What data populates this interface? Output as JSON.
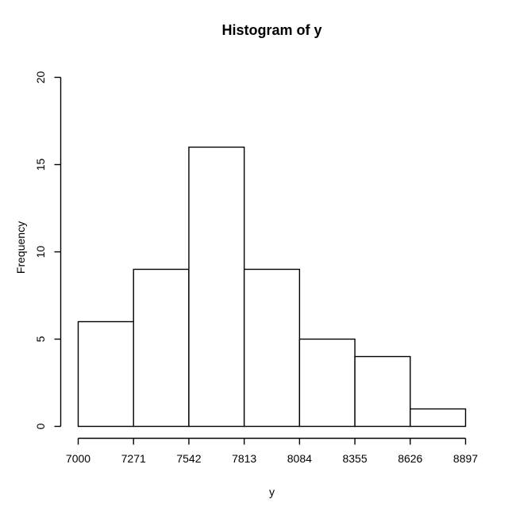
{
  "chart_data": {
    "type": "bar",
    "subtype": "histogram",
    "title": "Histogram of y",
    "xlabel": "y",
    "ylabel": "Frequency",
    "breaks": [
      7000,
      7271,
      7542,
      7813,
      8084,
      8355,
      8626,
      8897
    ],
    "counts": [
      6,
      9,
      16,
      9,
      5,
      4,
      1
    ],
    "x_tick_labels": [
      "7000",
      "7271",
      "7542",
      "7813",
      "8084",
      "8355",
      "8626",
      "8897"
    ],
    "y_ticks": [
      0,
      5,
      10,
      15,
      20
    ],
    "y_tick_labels": [
      "0",
      "5",
      "10",
      "15",
      "20"
    ],
    "xlim": [
      7000,
      8897
    ],
    "ylim": [
      0,
      20
    ],
    "grid": "off",
    "legend": "none",
    "bar_fill": "#ffffff",
    "line_color": "#000000",
    "background": "#ffffff"
  }
}
